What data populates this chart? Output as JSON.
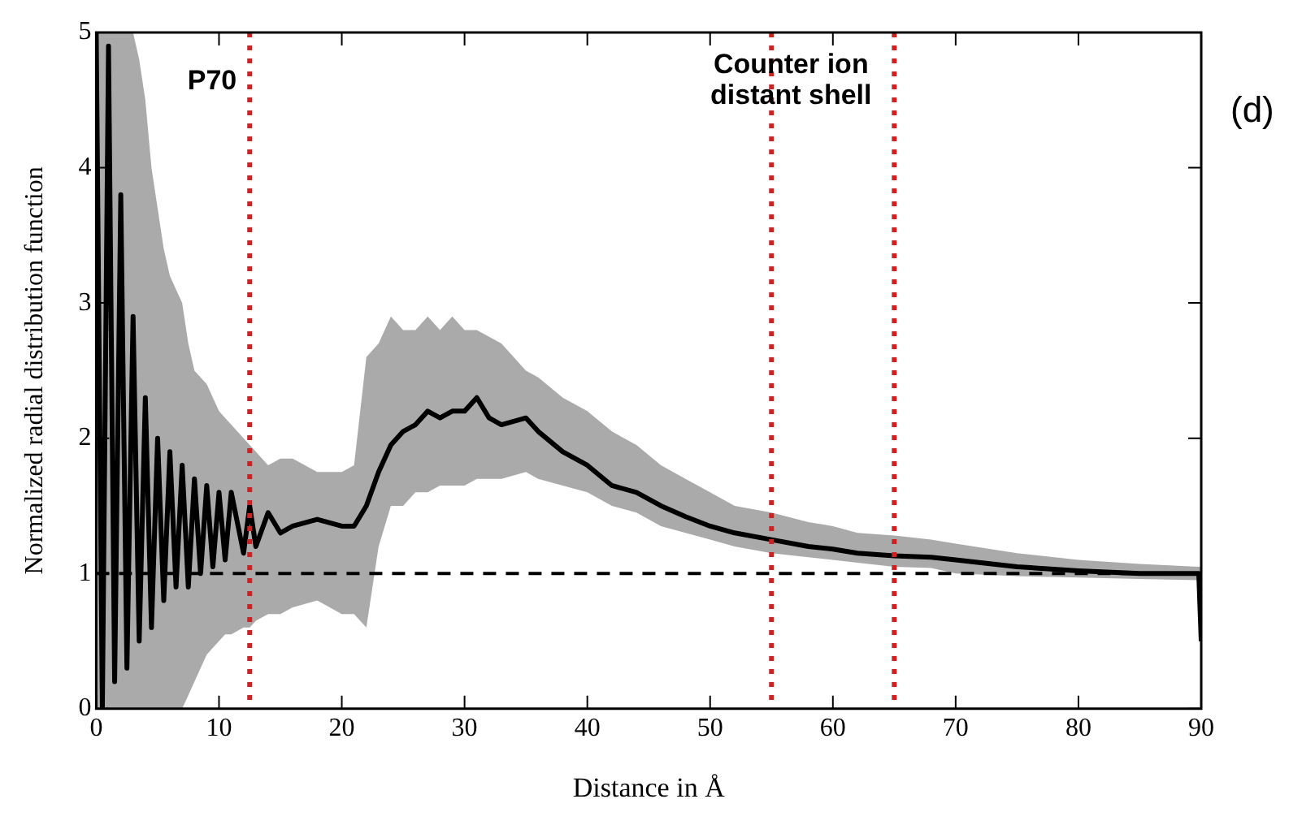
{
  "chart_data": {
    "type": "line",
    "xlabel": "Distance in Å",
    "ylabel": "Normalized radial distribution function",
    "x": [
      0,
      0.5,
      1,
      1.5,
      2,
      2.5,
      3,
      3.5,
      4,
      4.5,
      5,
      5.5,
      6,
      6.5,
      7,
      7.5,
      8,
      8.5,
      9,
      9.5,
      10,
      10.5,
      11,
      12,
      12.5,
      13,
      14,
      15,
      16,
      18,
      20,
      21,
      22,
      23,
      24,
      25,
      26,
      27,
      28,
      29,
      30,
      31,
      32,
      33,
      35,
      36,
      38,
      40,
      42,
      44,
      46,
      48,
      50,
      52,
      55,
      58,
      60,
      62,
      65,
      68,
      70,
      75,
      80,
      85,
      89.8,
      90
    ],
    "series": [
      {
        "color": "#000000",
        "values": [
          5,
          0,
          4.9,
          0.2,
          3.8,
          0.3,
          2.9,
          0.5,
          2.3,
          0.6,
          2.0,
          0.8,
          1.9,
          0.9,
          1.8,
          0.9,
          1.7,
          1.0,
          1.65,
          1.05,
          1.6,
          1.1,
          1.6,
          1.15,
          1.5,
          1.2,
          1.45,
          1.3,
          1.35,
          1.4,
          1.35,
          1.35,
          1.5,
          1.75,
          1.95,
          2.05,
          2.1,
          2.2,
          2.15,
          2.2,
          2.2,
          2.3,
          2.15,
          2.1,
          2.15,
          2.05,
          1.9,
          1.8,
          1.65,
          1.6,
          1.5,
          1.42,
          1.35,
          1.3,
          1.25,
          1.2,
          1.18,
          1.15,
          1.13,
          1.12,
          1.1,
          1.05,
          1.02,
          1.0,
          1.0,
          0.5
        ],
        "lower": [
          0,
          0,
          0,
          0,
          0,
          0,
          0,
          0,
          0,
          0,
          0,
          0,
          0,
          0,
          0,
          0.1,
          0.2,
          0.3,
          0.4,
          0.45,
          0.5,
          0.55,
          0.55,
          0.6,
          0.6,
          0.65,
          0.7,
          0.7,
          0.75,
          0.8,
          0.7,
          0.7,
          0.6,
          1.2,
          1.5,
          1.5,
          1.6,
          1.6,
          1.65,
          1.65,
          1.65,
          1.7,
          1.7,
          1.7,
          1.75,
          1.7,
          1.65,
          1.6,
          1.5,
          1.45,
          1.35,
          1.3,
          1.25,
          1.2,
          1.15,
          1.12,
          1.1,
          1.08,
          1.05,
          1.04,
          1.0,
          0.98,
          0.97,
          0.96,
          0.95,
          0.5
        ],
        "upper": [
          5,
          5,
          5,
          5,
          5,
          5,
          5,
          4.8,
          4.5,
          4.0,
          3.7,
          3.4,
          3.2,
          3.1,
          3.0,
          2.7,
          2.5,
          2.45,
          2.4,
          2.3,
          2.2,
          2.15,
          2.1,
          2.0,
          1.95,
          1.9,
          1.8,
          1.85,
          1.85,
          1.75,
          1.75,
          1.8,
          2.6,
          2.7,
          2.9,
          2.8,
          2.8,
          2.9,
          2.8,
          2.9,
          2.8,
          2.8,
          2.75,
          2.7,
          2.5,
          2.45,
          2.3,
          2.2,
          2.05,
          1.95,
          1.8,
          1.7,
          1.6,
          1.5,
          1.45,
          1.38,
          1.35,
          1.3,
          1.28,
          1.25,
          1.22,
          1.15,
          1.1,
          1.07,
          1.05,
          1.05
        ]
      }
    ],
    "xlim": [
      0,
      90
    ],
    "xticks": [
      0,
      10,
      20,
      30,
      40,
      50,
      60,
      70,
      80,
      90
    ],
    "ylim": [
      0,
      5
    ],
    "yticks": [
      0,
      1,
      2,
      3,
      4,
      5
    ],
    "grid": false,
    "legend": false,
    "marker": "none",
    "line_style": "solid",
    "ref_lines": [
      {
        "axis": "y",
        "value": 1,
        "color": "#000000",
        "line_style": "dashed"
      },
      {
        "axis": "x",
        "value": 12.5,
        "label": "P70",
        "color": "#cc2222",
        "line_style": "dotted"
      },
      {
        "axis": "x",
        "value": 55,
        "label": "Counter ion\ndistant shell",
        "color": "#cc2222",
        "line_style": "dotted"
      },
      {
        "axis": "x",
        "value": 65,
        "color": "#cc2222",
        "line_style": "dotted"
      }
    ],
    "annotations": [
      "(d)"
    ]
  }
}
